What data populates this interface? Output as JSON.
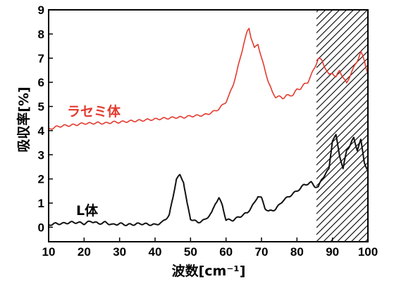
{
  "chart_data": {
    "type": "line",
    "title": "",
    "xlabel": "波数[cm⁻¹]",
    "ylabel": "吸収率[%]",
    "xlim": [
      10,
      100
    ],
    "ylim": [
      -0.6,
      9
    ],
    "xticks": [
      10,
      20,
      30,
      40,
      50,
      60,
      70,
      80,
      90,
      100
    ],
    "yticks": [
      0,
      1,
      2,
      3,
      4,
      5,
      6,
      7,
      8,
      9
    ],
    "shaded_region": {
      "x_start": 85.5,
      "x_end": 100,
      "pattern": "diagonal-hatch"
    },
    "grid": false,
    "legend": "none",
    "series": [
      {
        "name": "ラセミ体",
        "color": "#e23a2e",
        "x": [
          10,
          12,
          14,
          16,
          18,
          20,
          22,
          24,
          26,
          28,
          30,
          32,
          34,
          36,
          38,
          40,
          42,
          44,
          46,
          48,
          50,
          52,
          54,
          56,
          58,
          60,
          61,
          62,
          63,
          64,
          65,
          66,
          66.5,
          67,
          68,
          69,
          70,
          71,
          72,
          73,
          74,
          75,
          76,
          77,
          78,
          79,
          80,
          81,
          82,
          83,
          84,
          85,
          86,
          87,
          88,
          89,
          90,
          91,
          92,
          93,
          94,
          95,
          96,
          97,
          98,
          99,
          100
        ],
        "values": [
          4.05,
          4.15,
          4.2,
          4.22,
          4.25,
          4.3,
          4.3,
          4.32,
          4.3,
          4.35,
          4.35,
          4.38,
          4.4,
          4.42,
          4.45,
          4.47,
          4.5,
          4.52,
          4.55,
          4.55,
          4.6,
          4.62,
          4.65,
          4.75,
          4.9,
          5.2,
          5.5,
          5.9,
          6.4,
          7.0,
          7.6,
          8.1,
          8.25,
          7.9,
          7.4,
          7.6,
          7.0,
          6.5,
          6.0,
          5.6,
          5.4,
          5.4,
          5.35,
          5.45,
          5.45,
          5.5,
          5.7,
          5.75,
          5.9,
          6.0,
          6.3,
          6.6,
          7.0,
          6.9,
          6.6,
          6.3,
          6.4,
          6.2,
          6.5,
          6.2,
          5.95,
          6.3,
          6.6,
          6.9,
          7.25,
          6.9,
          6.35
        ]
      },
      {
        "name": "L体",
        "color": "#111111",
        "x": [
          10,
          12,
          14,
          16,
          18,
          20,
          22,
          24,
          26,
          28,
          30,
          32,
          34,
          36,
          38,
          40,
          42,
          44,
          45,
          46,
          47,
          48,
          49,
          50,
          52,
          54,
          56,
          57,
          58,
          59,
          60,
          62,
          64,
          66,
          68,
          69,
          70,
          71,
          72,
          74,
          76,
          78,
          80,
          82,
          84,
          85,
          86,
          87,
          88,
          89,
          90,
          91,
          92,
          93,
          94,
          95,
          96,
          97,
          98,
          99,
          100
        ],
        "values": [
          0.1,
          0.15,
          0.15,
          0.2,
          0.2,
          0.15,
          0.25,
          0.15,
          0.2,
          0.1,
          0.15,
          0.1,
          0.12,
          0.15,
          0.12,
          0.1,
          0.2,
          0.5,
          1.2,
          2.0,
          2.15,
          1.9,
          1.0,
          0.35,
          0.2,
          0.3,
          0.6,
          1.0,
          1.2,
          0.9,
          0.3,
          0.3,
          0.45,
          0.6,
          1.0,
          1.3,
          1.2,
          0.8,
          0.65,
          0.75,
          1.1,
          1.3,
          1.5,
          1.75,
          1.85,
          1.7,
          1.65,
          2.0,
          2.2,
          2.4,
          3.6,
          3.8,
          3.0,
          2.4,
          3.2,
          3.4,
          3.7,
          3.2,
          3.6,
          2.7,
          2.3
        ]
      }
    ]
  },
  "labels": {
    "racemic": "ラセミ体",
    "l_form": "L体"
  }
}
